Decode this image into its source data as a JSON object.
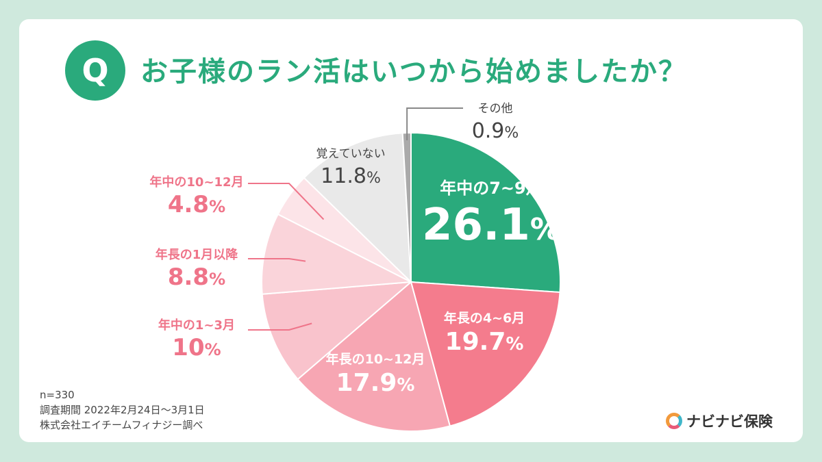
{
  "title": "お子様のラン活はいつから始めましたか？",
  "q_badge": "Q",
  "notes": {
    "n": "n=330",
    "period": "調査期間 2022年2月24日～3月1日",
    "source": "株式会社エイチームフィナジー調べ"
  },
  "brand": "ナビナビ保険",
  "chart_data": {
    "type": "pie",
    "title": "お子様のラン活はいつから始めましたか？",
    "unit": "%",
    "slices": [
      {
        "label": "年中の7~9月",
        "value": 26.1,
        "value_text": "26.1",
        "color": "#2aaa7c"
      },
      {
        "label": "年長の4~6月",
        "value": 19.7,
        "value_text": "19.7",
        "color": "#f47c8d"
      },
      {
        "label": "年長の10~12月",
        "value": 17.9,
        "value_text": "17.9",
        "color": "#f7a6b3"
      },
      {
        "label": "年中の1~3月",
        "value": 10,
        "value_text": "10",
        "color": "#f9c3cc"
      },
      {
        "label": "年長の1月以降",
        "value": 8.8,
        "value_text": "8.8",
        "color": "#fad4da"
      },
      {
        "label": "年中の10~12月",
        "value": 4.8,
        "value_text": "4.8",
        "color": "#fce4e8"
      },
      {
        "label": "覚えていない",
        "value": 11.8,
        "value_text": "11.8",
        "color": "#e9e9e9"
      },
      {
        "label": "その他",
        "value": 0.9,
        "value_text": "0.9",
        "color": "#aaaaaa"
      }
    ]
  }
}
